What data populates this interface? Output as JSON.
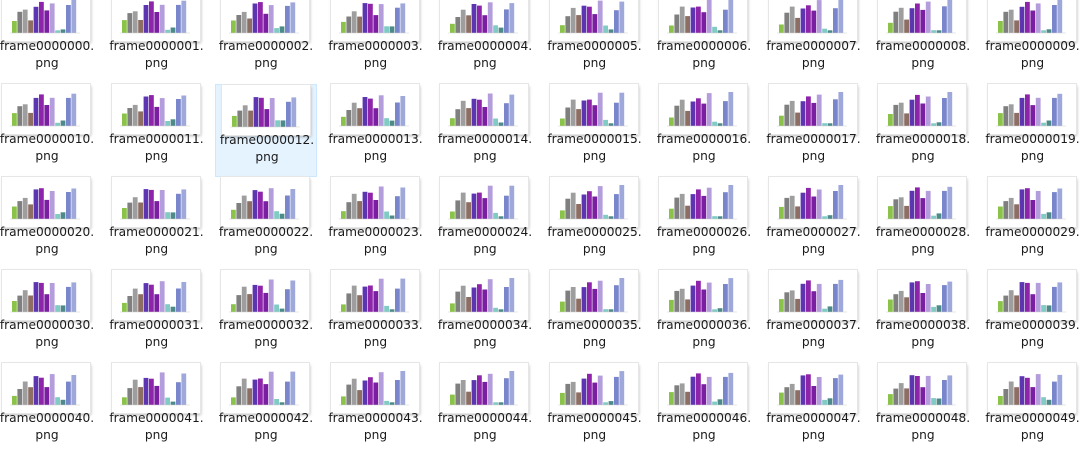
{
  "explorer": {
    "view": "large-icons",
    "selected_index": 12,
    "files": [
      {
        "name": "frame0000000.",
        "ext": "png"
      },
      {
        "name": "frame0000001.",
        "ext": "png"
      },
      {
        "name": "frame0000002.",
        "ext": "png"
      },
      {
        "name": "frame0000003.",
        "ext": "png"
      },
      {
        "name": "frame0000004.",
        "ext": "png"
      },
      {
        "name": "frame0000005.",
        "ext": "png"
      },
      {
        "name": "frame0000006.",
        "ext": "png"
      },
      {
        "name": "frame0000007.",
        "ext": "png"
      },
      {
        "name": "frame0000008.",
        "ext": "png"
      },
      {
        "name": "frame0000009.",
        "ext": "png"
      },
      {
        "name": "frame0000010.",
        "ext": "png"
      },
      {
        "name": "frame0000011.",
        "ext": "png"
      },
      {
        "name": "frame0000012.",
        "ext": "png"
      },
      {
        "name": "frame0000013.",
        "ext": "png"
      },
      {
        "name": "frame0000014.",
        "ext": "png"
      },
      {
        "name": "frame0000015.",
        "ext": "png"
      },
      {
        "name": "frame0000016.",
        "ext": "png"
      },
      {
        "name": "frame0000017.",
        "ext": "png"
      },
      {
        "name": "frame0000018.",
        "ext": "png"
      },
      {
        "name": "frame0000019.",
        "ext": "png"
      },
      {
        "name": "frame0000020.",
        "ext": "png"
      },
      {
        "name": "frame0000021.",
        "ext": "png"
      },
      {
        "name": "frame0000022.",
        "ext": "png"
      },
      {
        "name": "frame0000023.",
        "ext": "png"
      },
      {
        "name": "frame0000024.",
        "ext": "png"
      },
      {
        "name": "frame0000025.",
        "ext": "png"
      },
      {
        "name": "frame0000026.",
        "ext": "png"
      },
      {
        "name": "frame0000027.",
        "ext": "png"
      },
      {
        "name": "frame0000028.",
        "ext": "png"
      },
      {
        "name": "frame0000029.",
        "ext": "png"
      },
      {
        "name": "frame0000030.",
        "ext": "png"
      },
      {
        "name": "frame0000031.",
        "ext": "png"
      },
      {
        "name": "frame0000032.",
        "ext": "png"
      },
      {
        "name": "frame0000033.",
        "ext": "png"
      },
      {
        "name": "frame0000034.",
        "ext": "png"
      },
      {
        "name": "frame0000035.",
        "ext": "png"
      },
      {
        "name": "frame0000036.",
        "ext": "png"
      },
      {
        "name": "frame0000037.",
        "ext": "png"
      },
      {
        "name": "frame0000038.",
        "ext": "png"
      },
      {
        "name": "frame0000039.",
        "ext": "png"
      },
      {
        "name": "frame0000040.",
        "ext": "png"
      },
      {
        "name": "frame0000041.",
        "ext": "png"
      },
      {
        "name": "frame0000042.",
        "ext": "png"
      },
      {
        "name": "frame0000043.",
        "ext": "png"
      },
      {
        "name": "frame0000044.",
        "ext": "png"
      },
      {
        "name": "frame0000045.",
        "ext": "png"
      },
      {
        "name": "frame0000046.",
        "ext": "png"
      },
      {
        "name": "frame0000047.",
        "ext": "png"
      },
      {
        "name": "frame0000048.",
        "ext": "png"
      },
      {
        "name": "frame0000049.",
        "ext": "png"
      }
    ]
  },
  "thumbnail_chart": {
    "type": "bar",
    "bar_colors": [
      "#8bc34a",
      "#7f7f7f",
      "#9e9e9e",
      "#8d6e63",
      "#5e35b1",
      "#8e24aa",
      "#7b1fa2",
      "#b39ddb",
      "#80cbc4",
      "#4e8a8a",
      "#7986cb",
      "#9fa8da"
    ]
  }
}
